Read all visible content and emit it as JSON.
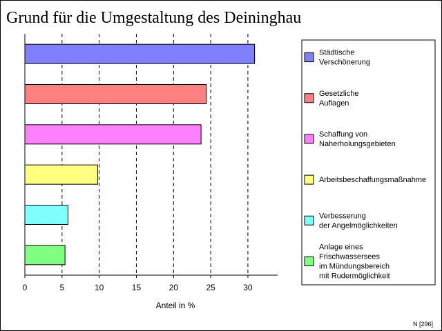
{
  "title": "Grund für die Umgestaltung des Deininghau",
  "footnote": "N [296]",
  "chart_data": {
    "type": "bar",
    "orientation": "horizontal",
    "xlabel": "Anteil in %",
    "xlim": [
      0,
      34
    ],
    "xticks": [
      0,
      5,
      10,
      15,
      20,
      25,
      30
    ],
    "grid": "vertical dashed",
    "legend_position": "right",
    "categories": [
      {
        "name": [
          "Städtische",
          "Verschönerung"
        ],
        "value": 30.9,
        "color": "#8080ff"
      },
      {
        "name": [
          "Gesetzliche",
          "Auflagen"
        ],
        "value": 24.4,
        "color": "#ff8080"
      },
      {
        "name": [
          "Schaffung von",
          "Naherholungsgebieten"
        ],
        "value": 23.7,
        "color": "#ff80ff"
      },
      {
        "name": [
          "Arbeitsbeschaffungsmaßnahme"
        ],
        "value": 9.8,
        "color": "#ffff80"
      },
      {
        "name": [
          "Verbesserung",
          "der Angelmöglichkeiten"
        ],
        "value": 5.8,
        "color": "#80ffff"
      },
      {
        "name": [
          "Anlage eines",
          "Frischwassersees",
          "im Mündungsbereich",
          "mit Rudermöglichkeit"
        ],
        "value": 5.4,
        "color": "#80ff80"
      }
    ]
  }
}
